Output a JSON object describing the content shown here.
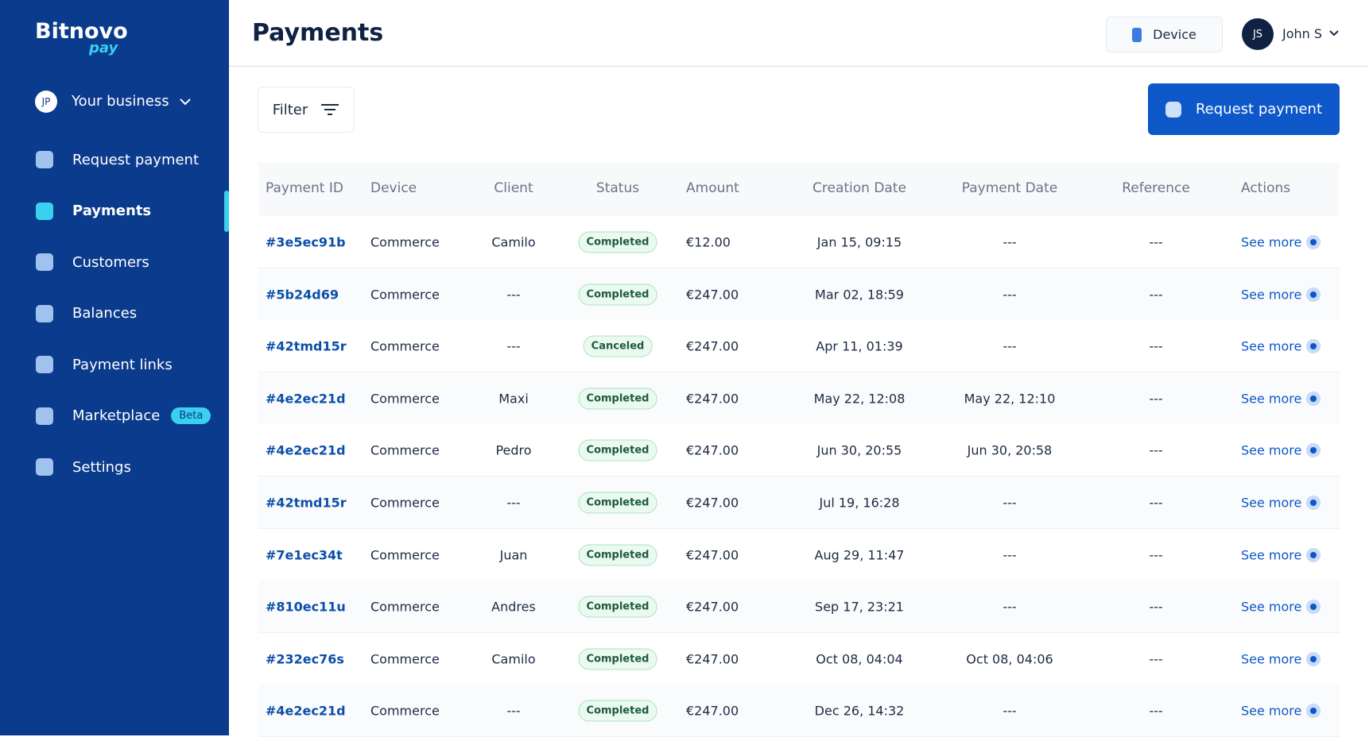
{
  "sidebar": {
    "logo": "Bitnovo",
    "logo_sub": "pay",
    "business": {
      "initials": "JP",
      "label": "Your business"
    },
    "nav": [
      {
        "label": "Request payment"
      },
      {
        "label": "Payments",
        "active": true
      },
      {
        "label": "Customers"
      },
      {
        "label": "Balances"
      },
      {
        "label": "Payment links"
      },
      {
        "label": "Marketplace",
        "badge": "Beta"
      },
      {
        "label": "Settings"
      }
    ]
  },
  "header": {
    "title": "Payments",
    "device": "Device",
    "user": {
      "initials": "JS",
      "name": "John S"
    }
  },
  "toolbar": {
    "filter": "Filter",
    "request": "Request payment"
  },
  "table": {
    "columns": [
      "Payment ID",
      "Device",
      "Client",
      "Status",
      "Amount",
      "Creation Date",
      "Payment Date",
      "Reference",
      "Actions"
    ],
    "rows": [
      [
        "#3e5ec91b",
        "Commerce",
        "Camilo",
        "Completed",
        "€12.00",
        "Jan 15, 09:15",
        "---",
        "---",
        "See more"
      ],
      [
        "#5b24d69",
        "Commerce",
        "---",
        "Completed",
        "€247.00",
        "Mar 02, 18:59",
        "---",
        "---",
        "See more"
      ],
      [
        "#42tmd15r",
        "Commerce",
        "---",
        "Canceled",
        "€247.00",
        "Apr 11, 01:39",
        "---",
        "---",
        "See more"
      ],
      [
        "#4e2ec21d",
        "Commerce",
        "Maxi",
        "Completed",
        "€247.00",
        "May 22, 12:08",
        "May 22, 12:10",
        "---",
        "See more"
      ],
      [
        "#4e2ec21d",
        "Commerce",
        "Pedro",
        "Completed",
        "€247.00",
        "Jun 30, 20:55",
        "Jun 30, 20:58",
        "---",
        "See more"
      ],
      [
        "#42tmd15r",
        "Commerce",
        "---",
        "Completed",
        "€247.00",
        "Jul 19, 16:28",
        "---",
        "---",
        "See more"
      ],
      [
        "#7e1ec34t",
        "Commerce",
        "Juan",
        "Completed",
        "€247.00",
        "Aug 29, 11:47",
        "---",
        "---",
        "See more"
      ],
      [
        "#810ec11u",
        "Commerce",
        "Andres",
        "Completed",
        "€247.00",
        "Sep 17, 23:21",
        "---",
        "---",
        "See more"
      ],
      [
        "#232ec76s",
        "Commerce",
        "Camilo",
        "Completed",
        "€247.00",
        "Oct 08, 04:04",
        "Oct 08, 04:06",
        "---",
        "See more"
      ],
      [
        "#4e2ec21d",
        "Commerce",
        "---",
        "Completed",
        "€247.00",
        "Dec 26, 14:32",
        "---",
        "---",
        "See more"
      ]
    ]
  }
}
